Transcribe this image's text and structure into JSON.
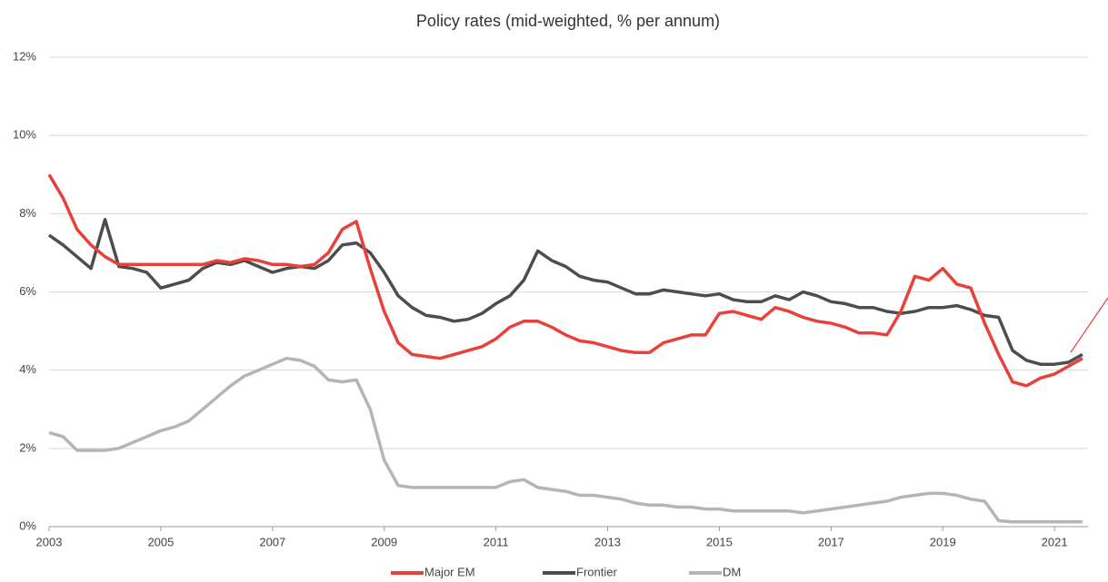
{
  "chart_data": {
    "type": "line",
    "title": "Policy rates (mid-weighted, % per annum)",
    "x": [
      2003,
      2003.25,
      2003.5,
      2003.75,
      2004,
      2004.25,
      2004.5,
      2004.75,
      2005,
      2005.25,
      2005.5,
      2005.75,
      2006,
      2006.25,
      2006.5,
      2006.75,
      2007,
      2007.25,
      2007.5,
      2007.75,
      2008,
      2008.25,
      2008.5,
      2008.75,
      2009,
      2009.25,
      2009.5,
      2009.75,
      2010,
      2010.25,
      2010.5,
      2010.75,
      2011,
      2011.25,
      2011.5,
      2011.75,
      2012,
      2012.25,
      2012.5,
      2012.75,
      2013,
      2013.25,
      2013.5,
      2013.75,
      2014,
      2014.25,
      2014.5,
      2014.75,
      2015,
      2015.25,
      2015.5,
      2015.75,
      2016,
      2016.25,
      2016.5,
      2016.75,
      2017,
      2017.25,
      2017.5,
      2017.75,
      2018,
      2018.25,
      2018.5,
      2018.75,
      2019,
      2019.25,
      2019.5,
      2019.75,
      2020,
      2020.25,
      2020.5,
      2020.75,
      2021,
      2021.25,
      2021.5
    ],
    "series": [
      {
        "name": "Major EM",
        "color": "#e8413c",
        "values": [
          9.0,
          8.4,
          7.6,
          7.2,
          6.9,
          6.7,
          6.7,
          6.7,
          6.7,
          6.7,
          6.7,
          6.7,
          6.8,
          6.75,
          6.85,
          6.8,
          6.7,
          6.7,
          6.65,
          6.7,
          7.0,
          7.6,
          7.8,
          6.6,
          5.5,
          4.7,
          4.4,
          4.35,
          4.3,
          4.4,
          4.5,
          4.6,
          4.8,
          5.1,
          5.25,
          5.25,
          5.1,
          4.9,
          4.75,
          4.7,
          4.6,
          4.5,
          4.45,
          4.45,
          4.7,
          4.8,
          4.9,
          4.9,
          5.45,
          5.5,
          5.4,
          5.3,
          5.6,
          5.5,
          5.35,
          5.25,
          5.2,
          5.1,
          4.95,
          4.95,
          4.9,
          5.5,
          6.4,
          6.3,
          6.6,
          6.2,
          6.1,
          5.2,
          4.4,
          3.7,
          3.6,
          3.8,
          3.9,
          4.1,
          4.3
        ]
      },
      {
        "name": "Frontier",
        "color": "#4d4d4d",
        "values": [
          7.45,
          7.2,
          6.9,
          6.6,
          7.85,
          6.65,
          6.6,
          6.5,
          6.1,
          6.2,
          6.3,
          6.6,
          6.75,
          6.7,
          6.8,
          6.65,
          6.5,
          6.6,
          6.65,
          6.6,
          6.8,
          7.2,
          7.25,
          7.0,
          6.5,
          5.9,
          5.6,
          5.4,
          5.35,
          5.25,
          5.3,
          5.45,
          5.7,
          5.9,
          6.3,
          7.05,
          6.8,
          6.65,
          6.4,
          6.3,
          6.25,
          6.1,
          5.95,
          5.95,
          6.05,
          6.0,
          5.95,
          5.9,
          5.95,
          5.8,
          5.75,
          5.75,
          5.9,
          5.8,
          6.0,
          5.9,
          5.75,
          5.7,
          5.6,
          5.6,
          5.5,
          5.45,
          5.5,
          5.6,
          5.6,
          5.65,
          5.55,
          5.4,
          5.35,
          4.5,
          4.25,
          4.15,
          4.15,
          4.2,
          4.4
        ]
      },
      {
        "name": "DM",
        "color": "#b5b5b5",
        "values": [
          2.4,
          2.3,
          1.95,
          1.95,
          1.95,
          2.0,
          2.15,
          2.3,
          2.45,
          2.55,
          2.7,
          3.0,
          3.3,
          3.6,
          3.85,
          4.0,
          4.15,
          4.3,
          4.25,
          4.1,
          3.75,
          3.7,
          3.75,
          3.0,
          1.7,
          1.05,
          1.0,
          1.0,
          1.0,
          1.0,
          1.0,
          1.0,
          1.0,
          1.15,
          1.2,
          1.0,
          0.95,
          0.9,
          0.8,
          0.8,
          0.75,
          0.7,
          0.6,
          0.55,
          0.55,
          0.5,
          0.5,
          0.45,
          0.45,
          0.4,
          0.4,
          0.4,
          0.4,
          0.4,
          0.35,
          0.4,
          0.45,
          0.5,
          0.55,
          0.6,
          0.65,
          0.75,
          0.8,
          0.85,
          0.85,
          0.8,
          0.7,
          0.65,
          0.15,
          0.12,
          0.12,
          0.12,
          0.12,
          0.12,
          0.12
        ]
      }
    ],
    "xlim": [
      2003,
      2021.6
    ],
    "xticks": [
      2003,
      2005,
      2007,
      2009,
      2011,
      2013,
      2015,
      2017,
      2019,
      2021
    ],
    "ylim": [
      0,
      12
    ],
    "yticks": [
      {
        "value": 0,
        "label": "0%"
      },
      {
        "value": 2,
        "label": "2%"
      },
      {
        "value": 4,
        "label": "4%"
      },
      {
        "value": 6,
        "label": "6%"
      },
      {
        "value": 8,
        "label": "8%"
      },
      {
        "value": 10,
        "label": "10%"
      },
      {
        "value": 12,
        "label": "12%"
      }
    ],
    "grid": true,
    "legend": "bottom"
  }
}
